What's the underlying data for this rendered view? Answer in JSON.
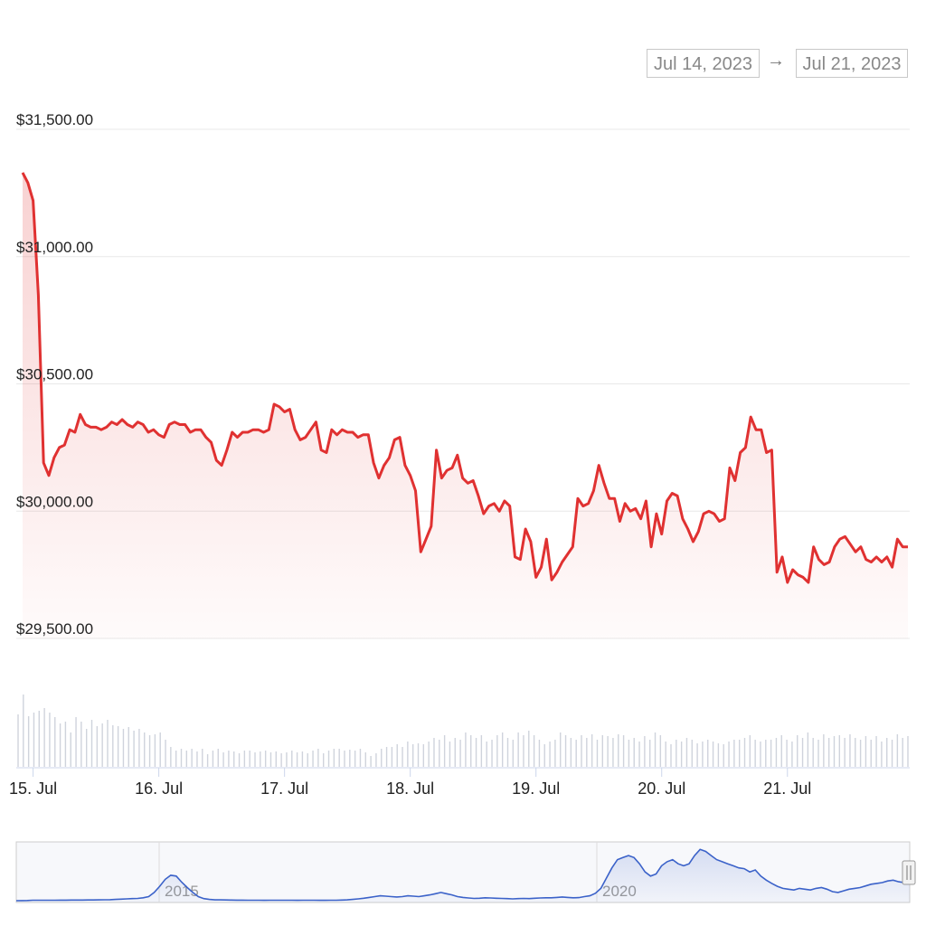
{
  "range_selector": {
    "from": "Jul 14, 2023",
    "arrow": "→",
    "to": "Jul 21, 2023"
  },
  "colors": {
    "price_line": "#e03131",
    "volume_bar": "#cfd3dc",
    "navigator_line": "#3b62c9",
    "grid": "#e8e8e8"
  },
  "chart_data": [
    {
      "type": "line",
      "title": "",
      "xlabel": "",
      "ylabel": "",
      "x_start": "Jul 14, 2023 22:00",
      "x_step_hours": 1,
      "x_tick_labels": [
        "15. Jul",
        "16. Jul",
        "17. Jul",
        "18. Jul",
        "19. Jul",
        "20. Jul",
        "21. Jul"
      ],
      "y_tick_labels": [
        "$31,500.00",
        "$31,000.00",
        "$30,500.00",
        "$30,000.00",
        "$29,500.00"
      ],
      "y_ticks": [
        31500,
        31000,
        30500,
        30000,
        29500
      ],
      "ylim": [
        29500,
        31500
      ],
      "series": [
        {
          "values": [
            31330,
            31290,
            31220,
            30850,
            30190,
            30140,
            30210,
            30250,
            30260,
            30320,
            30310,
            30380,
            30340,
            30330,
            30330,
            30320,
            30330,
            30350,
            30340,
            30360,
            30340,
            30330,
            30350,
            30340,
            30310,
            30320,
            30300,
            30290,
            30340,
            30350,
            30340,
            30340,
            30310,
            30320,
            30320,
            30290,
            30270,
            30200,
            30180,
            30240,
            30310,
            30290,
            30310,
            30310,
            30320,
            30320,
            30310,
            30320,
            30420,
            30410,
            30390,
            30400,
            30320,
            30280,
            30290,
            30320,
            30350,
            30240,
            30230,
            30320,
            30300,
            30320,
            30310,
            30310,
            30290,
            30300,
            30300,
            30190,
            30130,
            30180,
            30210,
            30280,
            30290,
            30180,
            30140,
            30080,
            29840,
            29890,
            29940,
            30240,
            30130,
            30160,
            30170,
            30220,
            30130,
            30110,
            30120,
            30060,
            29990,
            30020,
            30030,
            30000,
            30040,
            30020,
            29820,
            29810,
            29930,
            29880,
            29740,
            29780,
            29890,
            29730,
            29760,
            29800,
            29830,
            29860,
            30050,
            30020,
            30030,
            30080,
            30180,
            30110,
            30050,
            30050,
            29960,
            30030,
            30000,
            30010,
            29970,
            30040,
            29860,
            29990,
            29910,
            30040,
            30070,
            30060,
            29970,
            29930,
            29880,
            29920,
            29990,
            30000,
            29990,
            29960,
            29970,
            30170,
            30120,
            30230,
            30250,
            30370,
            30320,
            30320,
            30230,
            30240,
            29760,
            29820,
            29720,
            29770,
            29750,
            29740,
            29720,
            29860,
            29810,
            29790,
            29800,
            29860,
            29890,
            29900,
            29870,
            29840,
            29860,
            29810,
            29800,
            29820,
            29800,
            29820,
            29780,
            29890,
            29860,
            29860
          ]
        }
      ]
    },
    {
      "type": "bar",
      "title": "",
      "series": [
        {
          "values": [
            58,
            80,
            56,
            60,
            62,
            65,
            60,
            55,
            48,
            50,
            38,
            55,
            50,
            42,
            52,
            45,
            48,
            52,
            46,
            45,
            42,
            44,
            40,
            42,
            38,
            35,
            36,
            38,
            30,
            22,
            18,
            20,
            18,
            20,
            17,
            20,
            14,
            18,
            20,
            16,
            18,
            17,
            15,
            18,
            18,
            16,
            17,
            18,
            16,
            17,
            15,
            16,
            18,
            16,
            17,
            15,
            18,
            20,
            15,
            18,
            20,
            20,
            18,
            19,
            18,
            20,
            16,
            12,
            15,
            20,
            22,
            22,
            25,
            22,
            28,
            25,
            26,
            25,
            28,
            32,
            30,
            35,
            28,
            32,
            30,
            38,
            35,
            32,
            35,
            28,
            30,
            35,
            38,
            32,
            30,
            38,
            35,
            40,
            35,
            30,
            25,
            28,
            30,
            38,
            35,
            32,
            30,
            35,
            32,
            36,
            30,
            35,
            34,
            32,
            36,
            35,
            30,
            32,
            28,
            34,
            30,
            38,
            35,
            28,
            25,
            30,
            28,
            32,
            30,
            26,
            28,
            30,
            28,
            26,
            25,
            28,
            30,
            30,
            32,
            35,
            30,
            28,
            30,
            30,
            32,
            35,
            30,
            28,
            35,
            32,
            38,
            32,
            30,
            36,
            32,
            34,
            35,
            32,
            36,
            32,
            30,
            34,
            30,
            34,
            28,
            32,
            30,
            36,
            32,
            34
          ]
        }
      ]
    },
    {
      "type": "area",
      "title": "",
      "x_tick_labels": [
        "2015",
        "2020"
      ],
      "series": [
        {
          "values": [
            0,
            0.003,
            0.005,
            0.01,
            0.012,
            0.01,
            0.012,
            0.011,
            0.013,
            0.014,
            0.016,
            0.015,
            0.016,
            0.017,
            0.018,
            0.02,
            0.022,
            0.025,
            0.03,
            0.038,
            0.045,
            0.05,
            0.055,
            0.07,
            0.1,
            0.2,
            0.35,
            0.52,
            0.62,
            0.6,
            0.45,
            0.32,
            0.2,
            0.1,
            0.05,
            0.03,
            0.02,
            0.02,
            0.018,
            0.016,
            0.014,
            0.013,
            0.012,
            0.011,
            0.01,
            0.009,
            0.01,
            0.011,
            0.012,
            0.011,
            0.01,
            0.009,
            0.01,
            0.011,
            0.01,
            0.009,
            0.009,
            0.01,
            0.012,
            0.015,
            0.02,
            0.03,
            0.045,
            0.06,
            0.08,
            0.1,
            0.12,
            0.11,
            0.1,
            0.09,
            0.1,
            0.12,
            0.11,
            0.1,
            0.12,
            0.14,
            0.17,
            0.2,
            0.17,
            0.14,
            0.1,
            0.08,
            0.065,
            0.055,
            0.06,
            0.07,
            0.065,
            0.06,
            0.055,
            0.05,
            0.045,
            0.05,
            0.055,
            0.05,
            0.06,
            0.065,
            0.07,
            0.07,
            0.08,
            0.09,
            0.08,
            0.07,
            0.075,
            0.1,
            0.12,
            0.18,
            0.3,
            0.55,
            0.8,
            1.0,
            1.05,
            1.1,
            1.05,
            0.9,
            0.7,
            0.6,
            0.65,
            0.85,
            0.95,
            1.0,
            0.9,
            0.85,
            0.9,
            1.1,
            1.25,
            1.2,
            1.1,
            1.0,
            0.95,
            0.9,
            0.85,
            0.8,
            0.78,
            0.7,
            0.75,
            0.6,
            0.5,
            0.42,
            0.35,
            0.3,
            0.28,
            0.26,
            0.3,
            0.28,
            0.26,
            0.3,
            0.32,
            0.28,
            0.22,
            0.2,
            0.24,
            0.28,
            0.3,
            0.32,
            0.36,
            0.4,
            0.42,
            0.44,
            0.48,
            0.5,
            0.46,
            0.44,
            0.42
          ]
        }
      ]
    }
  ]
}
